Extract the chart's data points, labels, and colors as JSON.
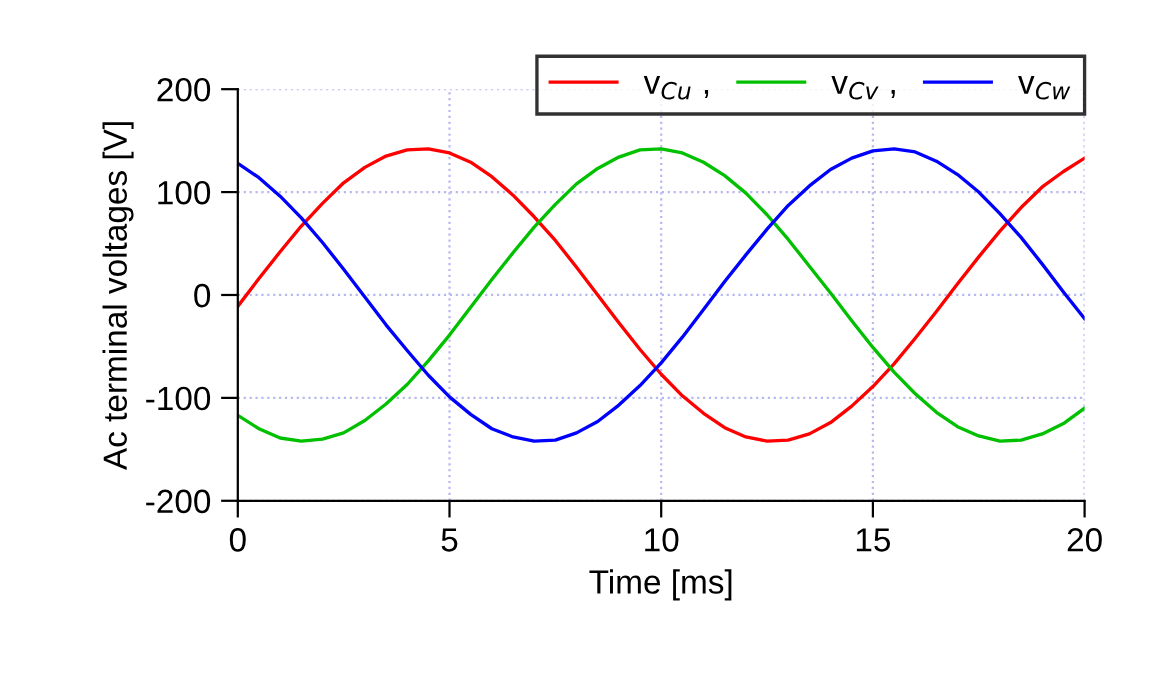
{
  "chart_data": {
    "type": "line",
    "xlabel": "Time [ms]",
    "ylabel": "Ac terminal voltages [V]",
    "x": [
      0,
      0.5,
      1,
      1.5,
      2,
      2.5,
      3,
      3.5,
      4,
      4.5,
      5,
      5.5,
      6,
      6.5,
      7,
      7.5,
      8,
      8.5,
      9,
      9.5,
      10,
      10.5,
      11,
      11.5,
      12,
      12.5,
      13,
      13.5,
      14,
      14.5,
      15,
      15.5,
      16,
      16.5,
      17,
      17.5,
      18,
      18.5,
      19,
      19.5,
      20
    ],
    "series": [
      {
        "name": "v$_{Cu}$ ,",
        "color": "#ff0000",
        "values": [
          -11,
          16,
          42,
          67,
          89,
          109,
          124,
          135,
          141,
          142,
          138,
          129,
          115,
          97,
          76,
          53,
          27,
          0,
          -27,
          -53,
          -77,
          -98,
          -115,
          -129,
          -138,
          -142,
          -141,
          -135,
          -124,
          -108,
          -89,
          -67,
          -42,
          -16,
          11,
          37,
          62,
          85,
          105,
          120,
          133
        ]
      },
      {
        "name": "v$_{Cv}$ ,",
        "color": "#00c000",
        "values": [
          -117,
          -130,
          -139,
          -142,
          -140,
          -134,
          -122,
          -106,
          -87,
          -64,
          -39,
          -12,
          15,
          41,
          66,
          88,
          108,
          123,
          134,
          141,
          142,
          138,
          129,
          116,
          99,
          78,
          54,
          28,
          2,
          -25,
          -51,
          -75,
          -96,
          -114,
          -128,
          -137,
          -142,
          -141,
          -135,
          -125,
          -110
        ]
      },
      {
        "name": "v$_{Cw}$",
        "color": "#0000ff",
        "values": [
          128,
          114,
          96,
          75,
          51,
          25,
          -2,
          -29,
          -54,
          -78,
          -99,
          -116,
          -130,
          -138,
          -142,
          -141,
          -134,
          -123,
          -107,
          -88,
          -66,
          -41,
          -14,
          13,
          39,
          64,
          87,
          106,
          122,
          133,
          140,
          142,
          139,
          130,
          117,
          100,
          79,
          56,
          30,
          3,
          -23
        ]
      }
    ],
    "xlim": [
      0,
      20
    ],
    "xticks": [
      0,
      5,
      10,
      15,
      20
    ],
    "ylim": [
      -200,
      200
    ],
    "yticks": [
      -200,
      -100,
      0,
      100,
      200
    ],
    "grid": true,
    "legend": "top right",
    "marker": "none",
    "line_style": "solid"
  }
}
